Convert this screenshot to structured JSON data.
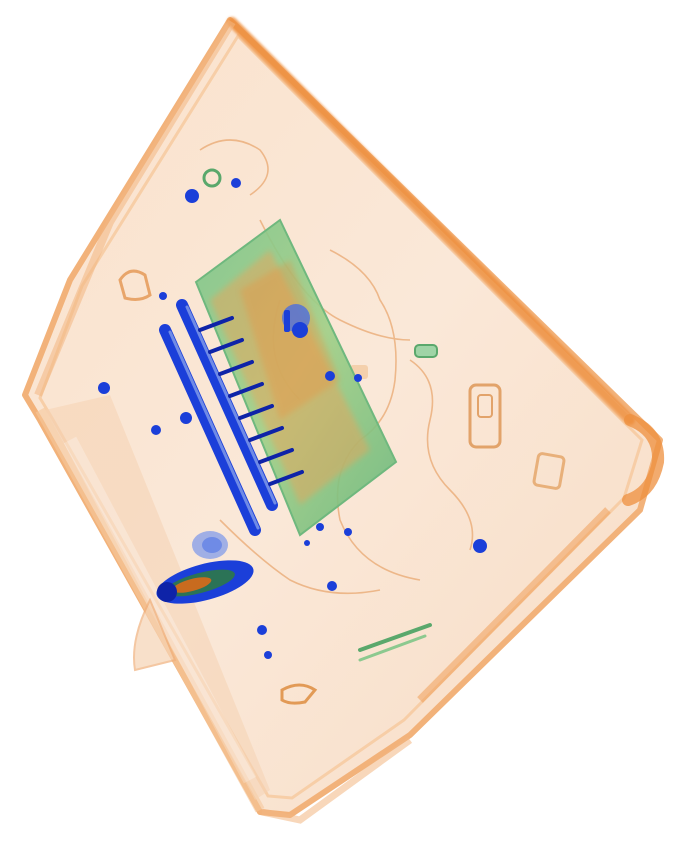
{
  "image": {
    "kind": "x-ray-baggage-scan",
    "background": "#ffffff",
    "palette": {
      "organic_light": "#f9dcc2",
      "organic_mid": "#f2b27a",
      "organic_strong": "#ee8f3e",
      "mixed_green": "#8cc98f",
      "mixed_green_dark": "#5aa86c",
      "metal_blue": "#1b3fd9",
      "metal_blue_dark": "#0e23a8",
      "metal_blue_light": "#6f8be6"
    },
    "objects": [
      "bag-outline",
      "handle",
      "book",
      "spiral-binding",
      "power-bank",
      "keys",
      "zipper-pulls",
      "buckle",
      "wires"
    ]
  }
}
